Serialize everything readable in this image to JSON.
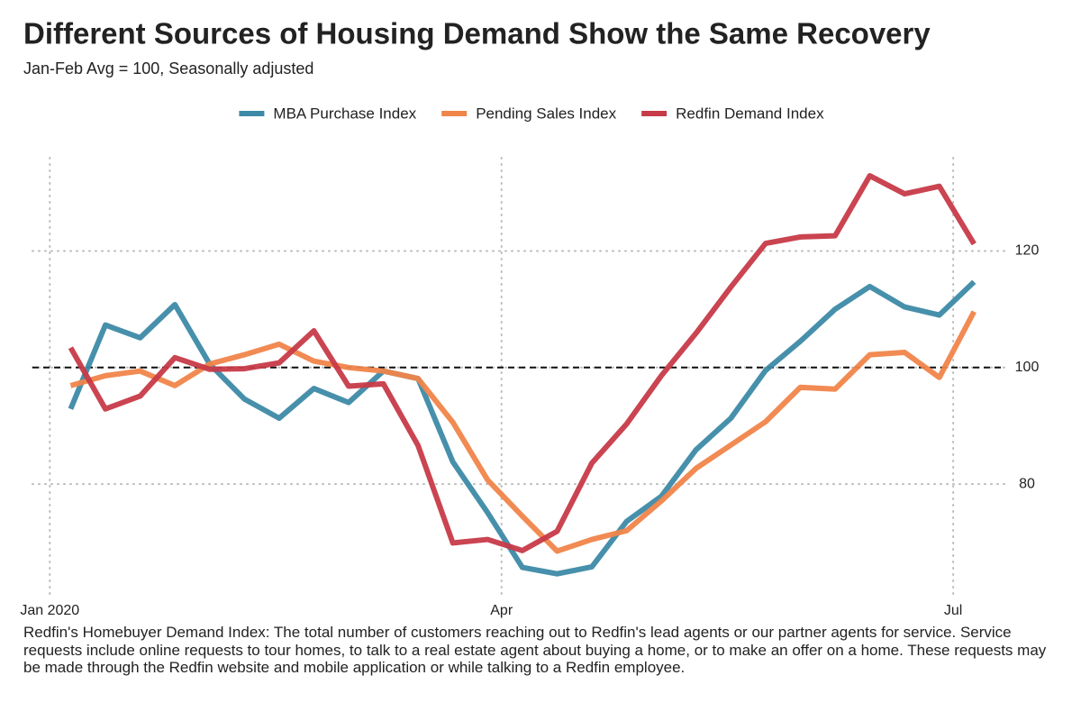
{
  "chart_data": {
    "type": "line",
    "title": "Different Sources of Housing Demand Show the Same Recovery",
    "subtitle": "Jan-Feb Avg = 100, Seasonally adjusted",
    "note": "Redfin's Homebuyer Demand Index: The total number of customers reaching out to Redfin's lead agents or our partner agents for service. Service requests include online requests to tour homes, to talk to a real estate agent about buying a home, or to make an offer on a home. These requests may be made through the Redfin website and mobile application or while talking to a Redfin employee.",
    "x": [
      0.6,
      1.6,
      2.6,
      3.6,
      4.6,
      5.6,
      6.6,
      7.6,
      8.6,
      9.6,
      10.6,
      11.6,
      12.6,
      13.6,
      14.6,
      15.6,
      16.6,
      17.6,
      18.6,
      19.6,
      20.6,
      21.6,
      22.6,
      23.6,
      24.6,
      25.6,
      26.6
    ],
    "xlim": [
      -0.5,
      27.5
    ],
    "xticks": [
      {
        "value": 0,
        "label": "Jan 2020"
      },
      {
        "value": 13,
        "label": "Apr"
      },
      {
        "value": 26,
        "label": "Jul"
      }
    ],
    "ylim": [
      61,
      136
    ],
    "yticks": [
      80,
      100,
      120
    ],
    "grid": true,
    "hline": 100,
    "legend": "top",
    "series": [
      {
        "name": "MBA Purchase Index",
        "color": "#3d8aa6",
        "values": [
          92.9,
          107.3,
          105.1,
          110.8,
          100.6,
          94.6,
          91.3,
          96.4,
          94.0,
          99.4,
          98.1,
          83.8,
          75.1,
          65.7,
          64.6,
          65.8,
          73.6,
          77.9,
          85.9,
          91.3,
          99.5,
          104.5,
          110.0,
          113.9,
          110.4,
          109.0,
          114.7
        ]
      },
      {
        "name": "Pending Sales Index",
        "color": "#f0854a",
        "values": [
          96.9,
          98.6,
          99.4,
          96.9,
          100.6,
          102.2,
          104.0,
          101.1,
          100,
          99.4,
          98.1,
          90.6,
          80.7,
          74.5,
          68.5,
          70.5,
          72.0,
          77.1,
          82.7,
          86.7,
          90.7,
          96.6,
          96.3,
          102.2,
          102.6,
          98.3,
          109.6
        ]
      },
      {
        "name": "Redfin Demand Index",
        "color": "#c73a48",
        "values": [
          103.4,
          92.9,
          95.1,
          101.7,
          99.7,
          99.8,
          100.8,
          106.3,
          96.8,
          97.2,
          86.6,
          69.9,
          70.5,
          68.6,
          71.9,
          83.6,
          90.3,
          98.6,
          105.9,
          113.8,
          121.3,
          122.4,
          122.6,
          132.9,
          129.8,
          131.1,
          121.2
        ]
      }
    ]
  }
}
